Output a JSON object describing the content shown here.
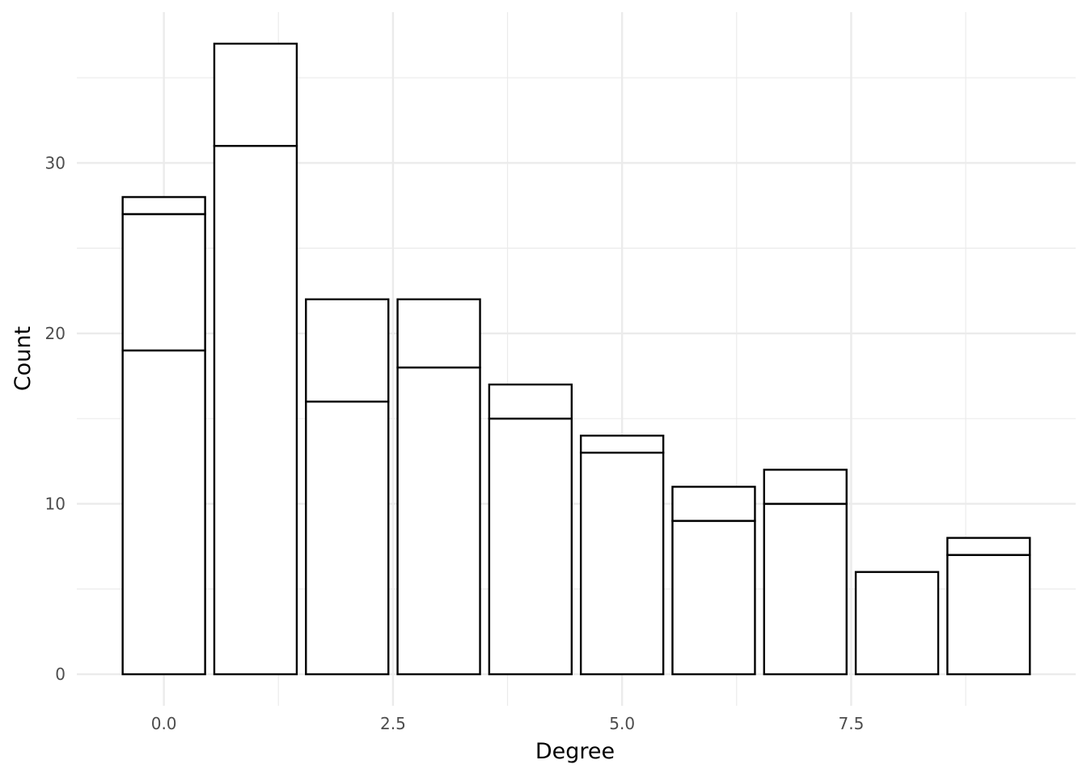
{
  "chart_data": {
    "type": "bar",
    "stacked": true,
    "title": "",
    "xlabel": "Degree",
    "ylabel": "Count",
    "x": [
      0,
      1,
      2,
      3,
      4,
      5,
      6,
      7,
      8,
      9
    ],
    "totals": [
      28,
      37,
      22,
      22,
      17,
      14,
      11,
      12,
      6,
      8
    ],
    "segment_boundaries": [
      [
        19,
        27,
        28
      ],
      [
        31,
        37
      ],
      [
        16,
        22
      ],
      [
        18,
        22
      ],
      [
        15,
        17
      ],
      [
        13,
        14
      ],
      [
        9,
        11
      ],
      [
        10,
        12
      ],
      [
        6
      ],
      [
        7,
        8
      ]
    ],
    "xlim": [
      -0.95,
      9.95
    ],
    "ylim": [
      -1.85,
      38.85
    ],
    "x_ticks": [
      0,
      2.5,
      5,
      7.5
    ],
    "x_tick_labels": [
      "0.0",
      "2.5",
      "5.0",
      "7.5"
    ],
    "y_ticks": [
      0,
      10,
      20,
      30
    ],
    "y_tick_labels": [
      "0",
      "10",
      "20",
      "30"
    ],
    "bar_fill": "#ffffff",
    "bar_stroke": "#000000",
    "grid": true,
    "grid_color": "#ebebeb",
    "legend": "none"
  }
}
